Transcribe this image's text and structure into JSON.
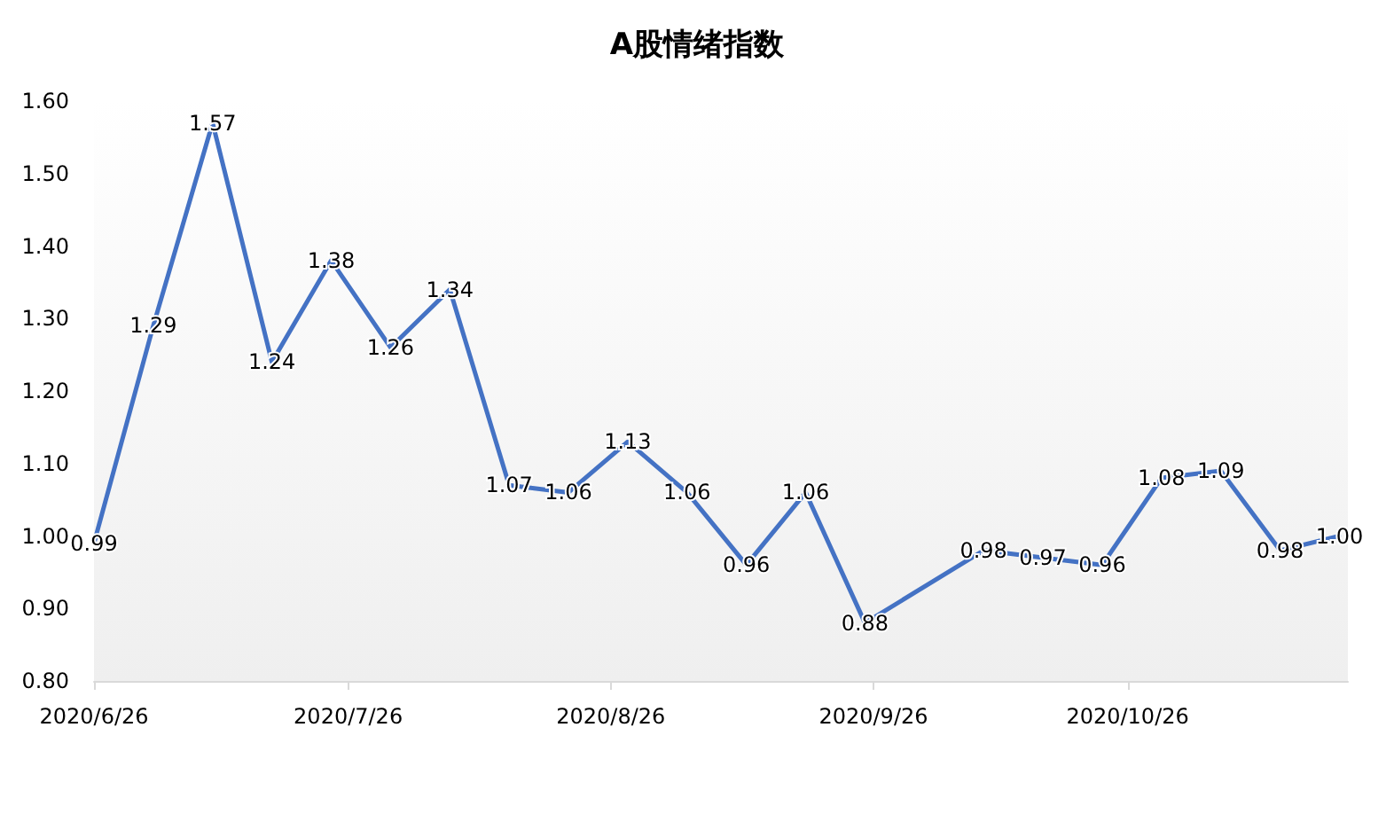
{
  "chart_data": {
    "type": "line",
    "title": "A股情绪指数",
    "x": [
      "2020-06-26",
      "2020-07-03",
      "2020-07-10",
      "2020-07-17",
      "2020-07-24",
      "2020-07-31",
      "2020-08-07",
      "2020-08-14",
      "2020-08-21",
      "2020-08-28",
      "2020-09-04",
      "2020-09-11",
      "2020-09-18",
      "2020-09-25",
      "2020-10-09",
      "2020-10-16",
      "2020-10-23",
      "2020-10-30",
      "2020-11-06",
      "2020-11-13",
      "2020-11-20"
    ],
    "series": [
      {
        "color": "#4472c4",
        "values": [
          0.99,
          1.29,
          1.57,
          1.24,
          1.38,
          1.26,
          1.34,
          1.07,
          1.06,
          1.13,
          1.06,
          0.96,
          1.06,
          0.88,
          0.98,
          0.97,
          0.96,
          1.08,
          1.09,
          0.98,
          1.0
        ]
      }
    ],
    "value_labels": [
      "0.99",
      "1.29",
      "1.57",
      "1.24",
      "1.38",
      "1.26",
      "1.34",
      "1.07",
      "1.06",
      "1.13",
      "1.06",
      "0.96",
      "1.06",
      "0.88",
      "0.98",
      "0.97",
      "0.96",
      "1.08",
      "1.09",
      "0.98",
      "1.00"
    ],
    "xlim": [
      "2020-06-26",
      "2020-11-21"
    ],
    "xticks": [
      {
        "value": "2020-06-26",
        "label": "2020/6/26"
      },
      {
        "value": "2020-07-26",
        "label": "2020/7/26"
      },
      {
        "value": "2020-08-26",
        "label": "2020/8/26"
      },
      {
        "value": "2020-09-26",
        "label": "2020/9/26"
      },
      {
        "value": "2020-10-26",
        "label": "2020/10/26"
      }
    ],
    "ylim": [
      0.8,
      1.6
    ],
    "yticks": [
      {
        "value": 0.8,
        "label": "0.80"
      },
      {
        "value": 0.9,
        "label": "0.90"
      },
      {
        "value": 1.0,
        "label": "1.00"
      },
      {
        "value": 1.1,
        "label": "1.10"
      },
      {
        "value": 1.2,
        "label": "1.20"
      },
      {
        "value": 1.3,
        "label": "1.30"
      },
      {
        "value": 1.4,
        "label": "1.40"
      },
      {
        "value": 1.5,
        "label": "1.50"
      },
      {
        "value": 1.6,
        "label": "1.60"
      }
    ],
    "grid": false,
    "marker": "none",
    "line_style": "solid"
  }
}
